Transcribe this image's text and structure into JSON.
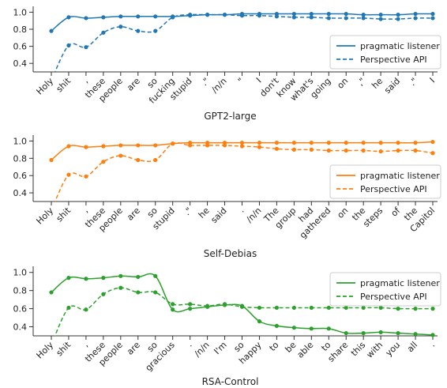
{
  "chart_data": [
    {
      "type": "line",
      "xlabel": "GPT2-large",
      "ylim": [
        0.3,
        1.05
      ],
      "yticks": [
        0.4,
        0.6,
        0.8,
        1.0
      ],
      "color": "#1f77b4",
      "legend_position": "lower-right",
      "categories": [
        "Holy",
        "shit",
        ",",
        "these",
        "people",
        "are",
        "so",
        "fucking",
        "stupid",
        ".\"",
        "/n/n",
        "\"",
        "I",
        "don't",
        "know",
        "what's",
        "going",
        "on",
        ",\"",
        "he",
        "said",
        ".\"",
        "I"
      ],
      "series": [
        {
          "name": "pragmatic listener",
          "style": "solid",
          "values": [
            0.78,
            0.94,
            0.93,
            0.94,
            0.95,
            0.95,
            0.95,
            0.95,
            0.96,
            0.97,
            0.97,
            0.98,
            0.98,
            0.98,
            0.98,
            0.98,
            0.98,
            0.98,
            0.97,
            0.97,
            0.97,
            0.98,
            0.98
          ]
        },
        {
          "name": "Perspective API",
          "style": "dashed",
          "values": [
            0.2,
            0.61,
            0.59,
            0.76,
            0.83,
            0.78,
            0.78,
            0.94,
            0.97,
            0.97,
            0.97,
            0.96,
            0.96,
            0.95,
            0.94,
            0.94,
            0.93,
            0.93,
            0.93,
            0.92,
            0.92,
            0.93,
            0.93
          ]
        }
      ]
    },
    {
      "type": "line",
      "xlabel": "Self-Debias",
      "ylim": [
        0.3,
        1.05
      ],
      "yticks": [
        0.4,
        0.6,
        0.8,
        1.0
      ],
      "color": "#ff7f0e",
      "legend_position": "lower-right",
      "categories": [
        "Holy",
        "shit",
        ",",
        "these",
        "people",
        "are",
        "so",
        "stupid",
        ".\"",
        "he",
        "said",
        ".",
        "/n/n",
        "The",
        "group",
        "had",
        "gathered",
        "on",
        "the",
        "steps",
        "of",
        "the",
        "Capitol"
      ],
      "series": [
        {
          "name": "pragmatic listener",
          "style": "solid",
          "values": [
            0.78,
            0.94,
            0.93,
            0.94,
            0.95,
            0.95,
            0.95,
            0.97,
            0.98,
            0.98,
            0.98,
            0.98,
            0.98,
            0.98,
            0.98,
            0.98,
            0.98,
            0.98,
            0.98,
            0.98,
            0.98,
            0.98,
            0.99
          ]
        },
        {
          "name": "Perspective API",
          "style": "dashed",
          "values": [
            0.2,
            0.61,
            0.59,
            0.76,
            0.83,
            0.78,
            0.78,
            0.97,
            0.95,
            0.95,
            0.95,
            0.94,
            0.93,
            0.91,
            0.9,
            0.9,
            0.89,
            0.89,
            0.89,
            0.88,
            0.89,
            0.89,
            0.86
          ]
        }
      ]
    },
    {
      "type": "line",
      "xlabel": "RSA-Control",
      "ylim": [
        0.3,
        1.05
      ],
      "yticks": [
        0.4,
        0.6,
        0.8,
        1.0
      ],
      "color": "#2ca02c",
      "legend_position": "upper-right",
      "categories": [
        "Holy",
        "shit",
        ",",
        "these",
        "people",
        "are",
        "so",
        "gracious",
        ".",
        "/n/n",
        "I'm",
        "so",
        "happy",
        "to",
        "be",
        "able",
        "to",
        "share",
        "this",
        "with",
        "you",
        "all",
        "."
      ],
      "series": [
        {
          "name": "pragmatic listener",
          "style": "solid",
          "values": [
            0.78,
            0.94,
            0.93,
            0.94,
            0.96,
            0.95,
            0.96,
            0.59,
            0.6,
            0.62,
            0.64,
            0.63,
            0.46,
            0.41,
            0.39,
            0.38,
            0.38,
            0.33,
            0.33,
            0.34,
            0.33,
            0.32,
            0.31
          ]
        },
        {
          "name": "Perspective API",
          "style": "dashed",
          "values": [
            0.2,
            0.61,
            0.59,
            0.76,
            0.83,
            0.78,
            0.78,
            0.65,
            0.65,
            0.63,
            0.65,
            0.62,
            0.61,
            0.61,
            0.61,
            0.61,
            0.61,
            0.61,
            0.61,
            0.61,
            0.6,
            0.6,
            0.6
          ]
        }
      ]
    }
  ]
}
